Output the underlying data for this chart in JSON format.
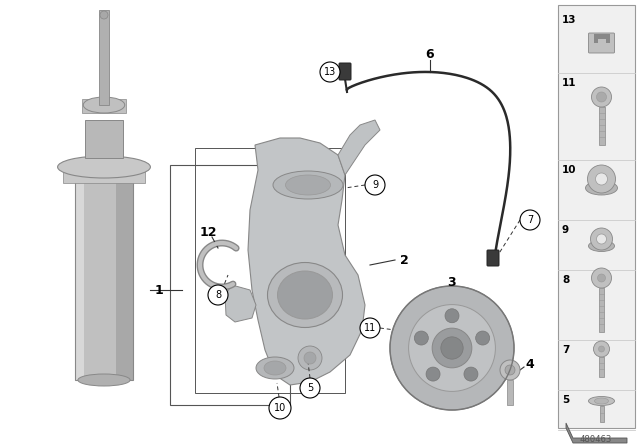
{
  "bg_color": "#ffffff",
  "diagram_number": "480463",
  "strut_gray": "#c8c8c8",
  "strut_dark": "#a0a0a0",
  "knuckle_light": "#c8cacb",
  "knuckle_mid": "#b0b2b4",
  "knuckle_dark": "#909294",
  "hub_light": "#b8babc",
  "hub_dark": "#909294",
  "cable_color": "#2a2a2a",
  "label_line_color": "#333333",
  "sidebar_bg": "#f0f0f0",
  "sidebar_border": "#aaaaaa",
  "part_gray_light": "#c5c5c5",
  "part_gray_mid": "#aaaaaa",
  "part_gray_dark": "#888888"
}
